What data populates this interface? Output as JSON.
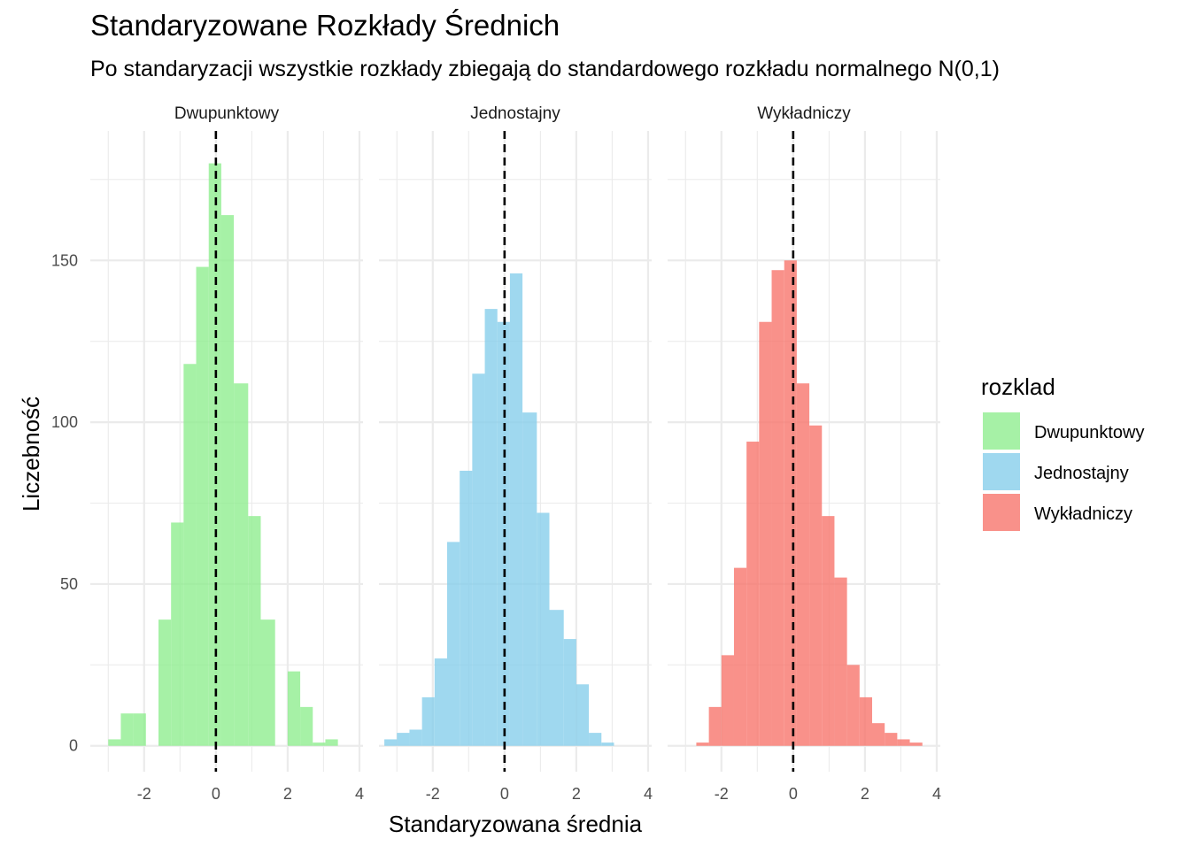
{
  "chart_data": {
    "type": "bar",
    "title": "Standaryzowane Rozkłady Średnich",
    "subtitle": "Po standaryzacji wszystkie rozkłady zbiegają do standardowego rozkładu normalnego N(0,1)",
    "xlabel": "Standaryzowana średnia",
    "ylabel": "Liczebność",
    "xlim": [
      -3.5,
      4.1
    ],
    "ylim": [
      -8,
      190
    ],
    "x_ticks": [
      -2,
      0,
      2,
      4
    ],
    "y_ticks": [
      0,
      50,
      100,
      150
    ],
    "reference_line_x": 0,
    "grid": true,
    "legend": {
      "title": "rozklad",
      "position": "right",
      "entries": [
        "Dwupunktowy",
        "Jednostajny",
        "Wykładniczy"
      ]
    },
    "panels": [
      {
        "name": "Dwupunktowy",
        "color": "#90EE90",
        "bins": [
          {
            "x0": -3.0,
            "x1": -2.65,
            "count": 2
          },
          {
            "x0": -2.65,
            "x1": -2.3,
            "count": 10
          },
          {
            "x0": -2.3,
            "x1": -1.95,
            "count": 10
          },
          {
            "x0": -1.6,
            "x1": -1.25,
            "count": 39
          },
          {
            "x0": -1.25,
            "x1": -0.9,
            "count": 69
          },
          {
            "x0": -0.9,
            "x1": -0.55,
            "count": 118
          },
          {
            "x0": -0.55,
            "x1": -0.2,
            "count": 148
          },
          {
            "x0": -0.2,
            "x1": 0.15,
            "count": 180
          },
          {
            "x0": 0.15,
            "x1": 0.5,
            "count": 164
          },
          {
            "x0": 0.5,
            "x1": 0.9,
            "count": 112
          },
          {
            "x0": 0.9,
            "x1": 1.25,
            "count": 71
          },
          {
            "x0": 1.25,
            "x1": 1.65,
            "count": 39
          },
          {
            "x0": 2.0,
            "x1": 2.35,
            "count": 23
          },
          {
            "x0": 2.35,
            "x1": 2.7,
            "count": 12
          },
          {
            "x0": 2.7,
            "x1": 3.05,
            "count": 1
          },
          {
            "x0": 3.05,
            "x1": 3.4,
            "count": 2
          }
        ]
      },
      {
        "name": "Jednostajny",
        "color": "#87CEEB",
        "bins": [
          {
            "x0": -3.35,
            "x1": -3.0,
            "count": 2
          },
          {
            "x0": -3.0,
            "x1": -2.65,
            "count": 4
          },
          {
            "x0": -2.65,
            "x1": -2.3,
            "count": 5
          },
          {
            "x0": -2.3,
            "x1": -1.95,
            "count": 15
          },
          {
            "x0": -1.95,
            "x1": -1.6,
            "count": 27
          },
          {
            "x0": -1.6,
            "x1": -1.25,
            "count": 63
          },
          {
            "x0": -1.25,
            "x1": -0.9,
            "count": 85
          },
          {
            "x0": -0.9,
            "x1": -0.55,
            "count": 115
          },
          {
            "x0": -0.55,
            "x1": -0.2,
            "count": 135
          },
          {
            "x0": -0.2,
            "x1": 0.15,
            "count": 131
          },
          {
            "x0": 0.15,
            "x1": 0.5,
            "count": 146
          },
          {
            "x0": 0.5,
            "x1": 0.9,
            "count": 103
          },
          {
            "x0": 0.9,
            "x1": 1.25,
            "count": 72
          },
          {
            "x0": 1.25,
            "x1": 1.65,
            "count": 42
          },
          {
            "x0": 1.65,
            "x1": 2.0,
            "count": 33
          },
          {
            "x0": 2.0,
            "x1": 2.35,
            "count": 19
          },
          {
            "x0": 2.35,
            "x1": 2.7,
            "count": 4
          },
          {
            "x0": 2.7,
            "x1": 3.05,
            "count": 1
          }
        ]
      },
      {
        "name": "Wykładniczy",
        "color": "#F8766D",
        "bins": [
          {
            "x0": -2.7,
            "x1": -2.35,
            "count": 1
          },
          {
            "x0": -2.35,
            "x1": -2.0,
            "count": 12
          },
          {
            "x0": -2.0,
            "x1": -1.65,
            "count": 28
          },
          {
            "x0": -1.65,
            "x1": -1.3,
            "count": 55
          },
          {
            "x0": -1.3,
            "x1": -0.95,
            "count": 94
          },
          {
            "x0": -0.95,
            "x1": -0.6,
            "count": 131
          },
          {
            "x0": -0.6,
            "x1": -0.25,
            "count": 147
          },
          {
            "x0": -0.25,
            "x1": 0.1,
            "count": 150
          },
          {
            "x0": 0.1,
            "x1": 0.45,
            "count": 112
          },
          {
            "x0": 0.45,
            "x1": 0.8,
            "count": 99
          },
          {
            "x0": 0.8,
            "x1": 1.15,
            "count": 71
          },
          {
            "x0": 1.15,
            "x1": 1.5,
            "count": 52
          },
          {
            "x0": 1.5,
            "x1": 1.85,
            "count": 25
          },
          {
            "x0": 1.85,
            "x1": 2.2,
            "count": 15
          },
          {
            "x0": 2.2,
            "x1": 2.55,
            "count": 7
          },
          {
            "x0": 2.55,
            "x1": 2.9,
            "count": 4
          },
          {
            "x0": 2.9,
            "x1": 3.25,
            "count": 2
          },
          {
            "x0": 3.25,
            "x1": 3.6,
            "count": 1
          }
        ]
      }
    ]
  }
}
